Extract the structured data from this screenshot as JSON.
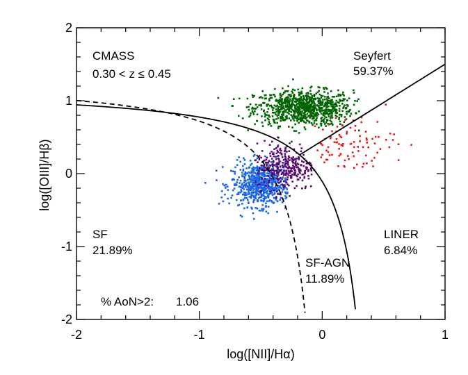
{
  "chart_data": {
    "type": "scatter",
    "title": "",
    "xlabel": "log([NII]/Hα)",
    "ylabel": "log([OIII]/Hβ)",
    "xlim": [
      -2,
      1
    ],
    "ylim": [
      -2,
      2
    ],
    "x_ticks": [
      -2,
      -1,
      0,
      1
    ],
    "x_tick_labels": [
      "-2",
      "-1",
      "0",
      "1"
    ],
    "y_ticks": [
      -2,
      -1,
      0,
      1,
      2
    ],
    "y_tick_labels": [
      "-2",
      "-1",
      "0",
      "1",
      "2"
    ],
    "minor_x_step": 0.2,
    "minor_y_step": 0.2,
    "grid": false,
    "annotations": {
      "sample": "CMASS",
      "redshift": "0.30 < z ≤ 0.45",
      "seyfert_label": "Seyfert",
      "seyfert_pct": "59.37%",
      "sf_label": "SF",
      "sf_pct": "21.89%",
      "liner_label": "LINER",
      "liner_pct": "6.84%",
      "sfagn_label": "SF-AGN",
      "sfagn_pct": "11.89%",
      "aon_label": "% AoN>2:",
      "aon_value": "1.06"
    },
    "lines": {
      "kauffmann": {
        "style": "dashed",
        "formula": "0.61/(x-0.05)+1.30",
        "x_range": [
          -2,
          -0.14
        ]
      },
      "kewley": {
        "style": "solid",
        "formula": "0.61/(x-0.47)+1.19",
        "x_range": [
          -2,
          0.27
        ]
      },
      "seyfert_liner": {
        "style": "solid",
        "formula": "1.05*x+0.45",
        "x_range": [
          -0.18,
          1.0
        ]
      }
    },
    "series": [
      {
        "name": "Seyfert",
        "color": "#006400",
        "n": 900,
        "center": [
          -0.15,
          0.9
        ],
        "spread": [
          0.2,
          0.12
        ],
        "x_range": [
          -0.85,
          0.3
        ],
        "y_range": [
          0.35,
          1.3
        ]
      },
      {
        "name": "SF",
        "color": "#1a66e6",
        "n": 700,
        "center": [
          -0.5,
          -0.15
        ],
        "spread": [
          0.12,
          0.15
        ],
        "x_range": [
          -1.0,
          -0.28
        ],
        "y_range": [
          -0.8,
          0.45
        ]
      },
      {
        "name": "SF-AGN",
        "color": "#5a0a6e",
        "n": 320,
        "center": [
          -0.3,
          0.1
        ],
        "spread": [
          0.12,
          0.16
        ],
        "x_range": [
          -0.55,
          -0.05
        ],
        "y_range": [
          -0.45,
          0.5
        ]
      },
      {
        "name": "LINER",
        "color": "#e61a1a",
        "n": 110,
        "center": [
          0.2,
          0.4
        ],
        "spread": [
          0.2,
          0.2
        ],
        "x_range": [
          -0.1,
          0.95
        ],
        "y_range": [
          0.05,
          0.95
        ]
      }
    ]
  }
}
